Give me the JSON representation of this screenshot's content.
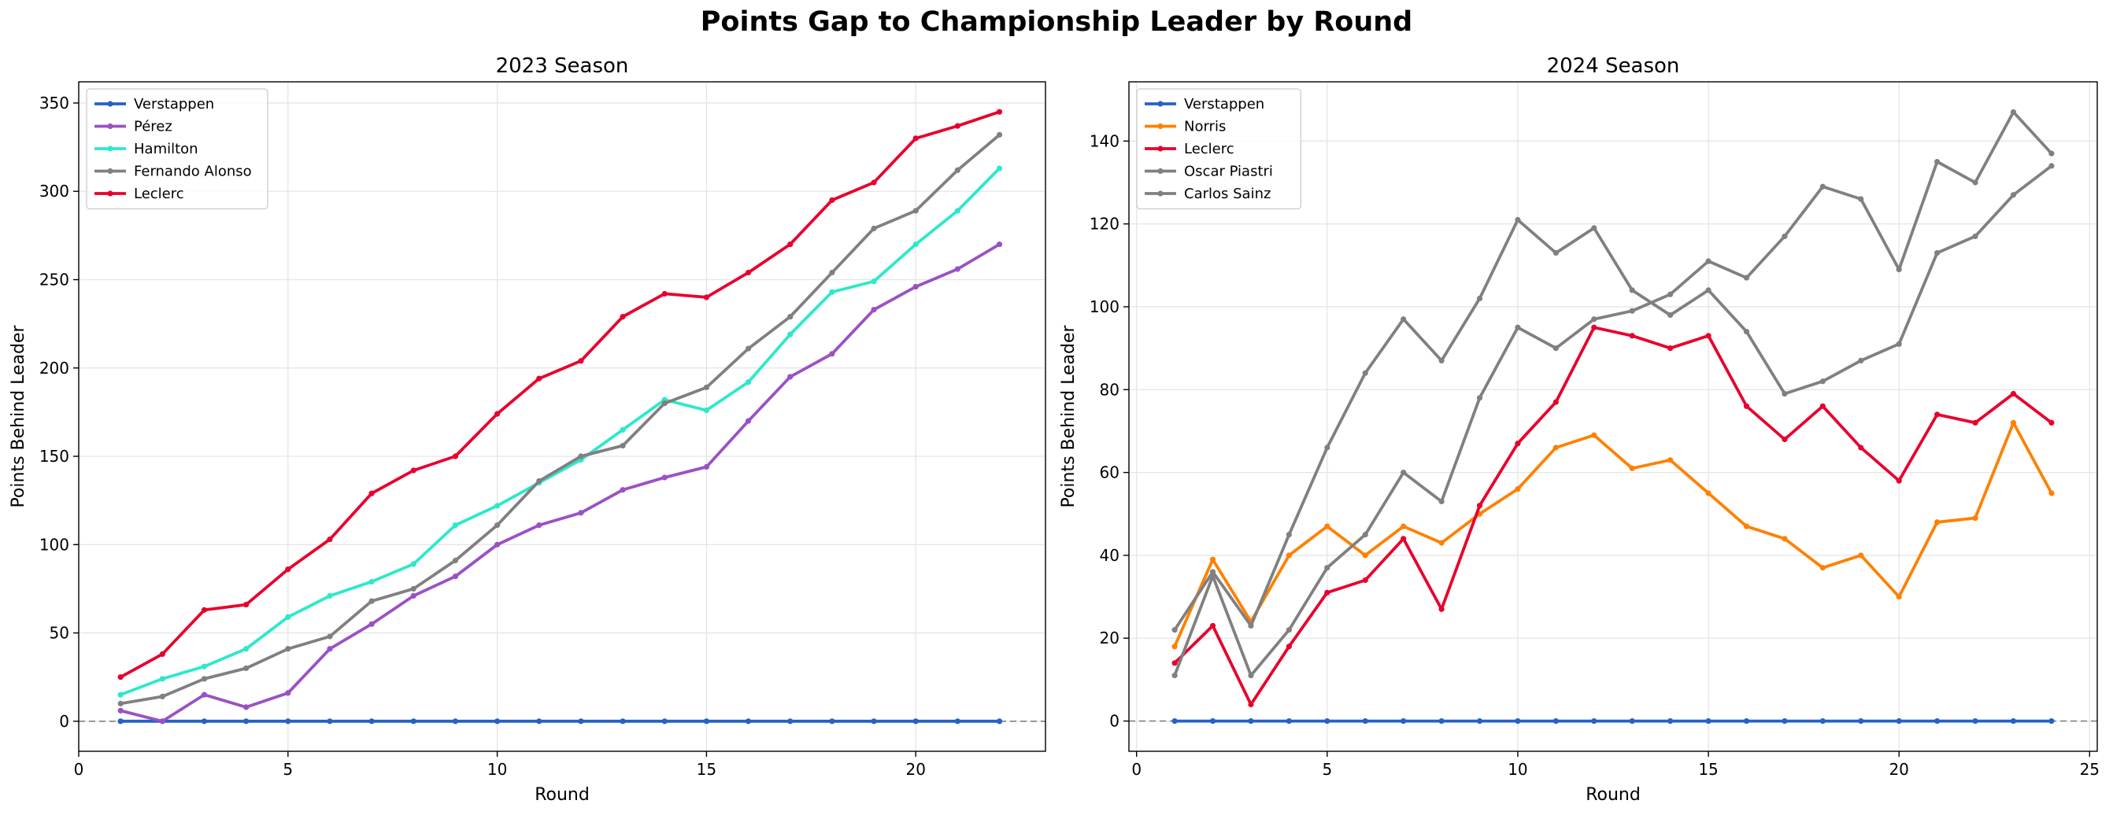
{
  "figure": {
    "title": "Points Gap to Championship Leader by Round"
  },
  "chart_data": [
    {
      "type": "line",
      "title": "2023 Season",
      "xlabel": "Round",
      "ylabel": "Points Behind Leader",
      "xlim": [
        0,
        23.1
      ],
      "ylim": [
        -17,
        362
      ],
      "xticks": [
        0,
        5,
        10,
        15,
        20
      ],
      "yticks": [
        0,
        50,
        100,
        150,
        200,
        250,
        300,
        350
      ],
      "grid": true,
      "legend_position": "upper-left",
      "zero_line": true,
      "x": [
        1,
        2,
        3,
        4,
        5,
        6,
        7,
        8,
        9,
        10,
        11,
        12,
        13,
        14,
        15,
        16,
        17,
        18,
        19,
        20,
        21,
        22
      ],
      "series": [
        {
          "name": "Verstappen",
          "color": "#2462c6",
          "values": [
            0,
            0,
            0,
            0,
            0,
            0,
            0,
            0,
            0,
            0,
            0,
            0,
            0,
            0,
            0,
            0,
            0,
            0,
            0,
            0,
            0,
            0
          ]
        },
        {
          "name": "Pérez",
          "color": "#9b51c4",
          "values": [
            6,
            0,
            15,
            8,
            16,
            41,
            55,
            71,
            82,
            100,
            111,
            118,
            131,
            138,
            144,
            170,
            195,
            208,
            233,
            246,
            256,
            270
          ]
        },
        {
          "name": "Hamilton",
          "color": "#2de8cc",
          "values": [
            15,
            24,
            31,
            41,
            59,
            71,
            79,
            89,
            111,
            122,
            135,
            148,
            165,
            182,
            176,
            192,
            219,
            243,
            249,
            270,
            289,
            313
          ]
        },
        {
          "name": "Fernando Alonso",
          "color": "#808080",
          "values": [
            10,
            14,
            24,
            30,
            41,
            48,
            68,
            75,
            91,
            111,
            136,
            150,
            156,
            180,
            189,
            211,
            229,
            254,
            279,
            289,
            312,
            332
          ]
        },
        {
          "name": "Leclerc",
          "color": "#e8002d",
          "values": [
            25,
            38,
            63,
            66,
            86,
            103,
            129,
            142,
            150,
            174,
            194,
            204,
            229,
            242,
            240,
            254,
            270,
            295,
            305,
            330,
            337,
            345
          ]
        }
      ]
    },
    {
      "type": "line",
      "title": "2024 Season",
      "xlabel": "Round",
      "ylabel": "Points Behind Leader",
      "xlim": [
        -0.2,
        25.2
      ],
      "ylim": [
        -7.3,
        154.3
      ],
      "xticks": [
        0,
        5,
        10,
        15,
        20,
        25
      ],
      "yticks": [
        0,
        20,
        40,
        60,
        80,
        100,
        120,
        140
      ],
      "grid": true,
      "legend_position": "upper-left",
      "zero_line": true,
      "x": [
        1,
        2,
        3,
        4,
        5,
        6,
        7,
        8,
        9,
        10,
        11,
        12,
        13,
        14,
        15,
        16,
        17,
        18,
        19,
        20,
        21,
        22,
        23,
        24
      ],
      "series": [
        {
          "name": "Verstappen",
          "color": "#2462c6",
          "values": [
            0,
            0,
            0,
            0,
            0,
            0,
            0,
            0,
            0,
            0,
            0,
            0,
            0,
            0,
            0,
            0,
            0,
            0,
            0,
            0,
            0,
            0,
            0,
            0
          ]
        },
        {
          "name": "Norris",
          "color": "#ff8000",
          "values": [
            18,
            39,
            24,
            40,
            47,
            40,
            47,
            43,
            50,
            56,
            66,
            69,
            61,
            63,
            55,
            47,
            44,
            37,
            40,
            30,
            48,
            49,
            72,
            55
          ]
        },
        {
          "name": "Leclerc",
          "color": "#e8002d",
          "values": [
            14,
            23,
            4,
            18,
            31,
            34,
            44,
            27,
            52,
            67,
            77,
            95,
            93,
            90,
            93,
            76,
            68,
            76,
            66,
            58,
            74,
            72,
            79,
            72
          ]
        },
        {
          "name": "Oscar Piastri",
          "color": "#808080",
          "values": [
            11,
            35,
            11,
            22,
            37,
            45,
            60,
            53,
            78,
            95,
            90,
            97,
            99,
            103,
            111,
            107,
            117,
            129,
            126,
            109,
            135,
            130,
            147,
            137
          ]
        },
        {
          "name": "Carlos Sainz",
          "color": "#808080",
          "values": [
            22,
            36,
            23,
            45,
            66,
            84,
            97,
            87,
            102,
            121,
            113,
            119,
            104,
            98,
            104,
            94,
            79,
            82,
            87,
            91,
            113,
            117,
            127,
            134
          ]
        }
      ]
    }
  ]
}
